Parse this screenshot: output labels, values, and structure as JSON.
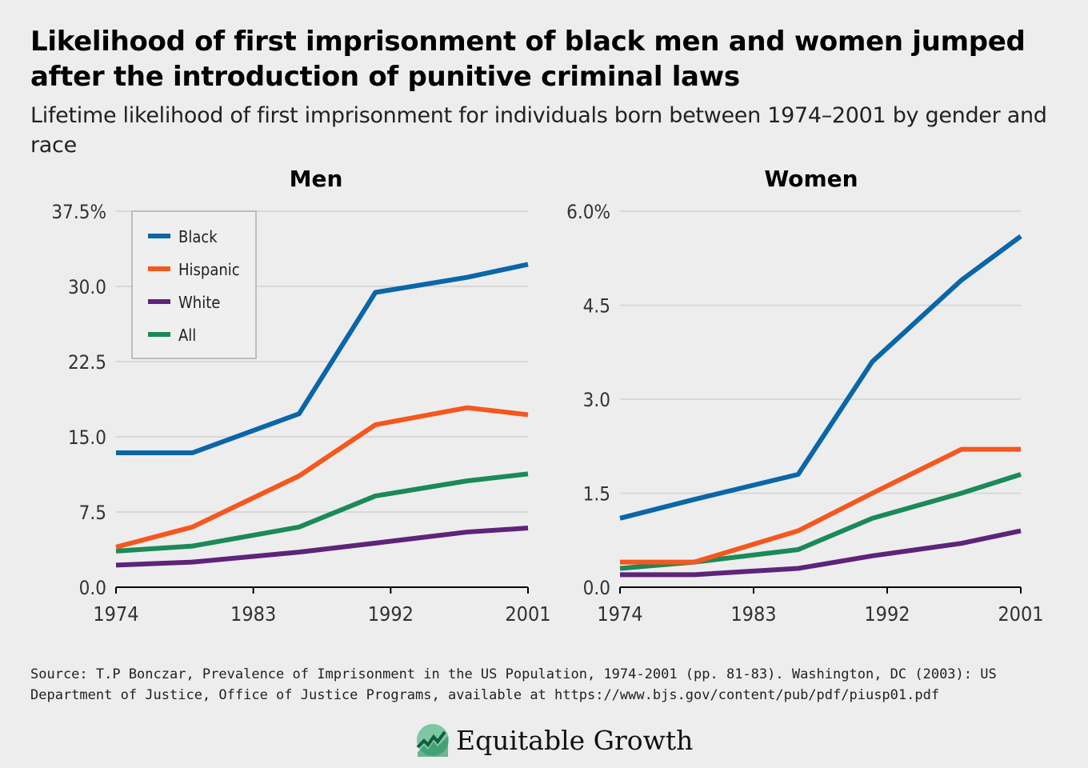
{
  "title": "Likelihood of first imprisonment of black men and women jumped after the introduction of punitive criminal laws",
  "subtitle": "Lifetime likelihood of first imprisonment for individuals born between 1974–2001 by gender and race",
  "source": "Source: T.P Bonczar, Prevalence of Imprisonment in the US Population, 1974-2001 (pp. 81-83). Washington, DC (2003): US Department of Justice, Office of Justice Programs, available at https://www.bjs.gov/content/pub/pdf/piusp01.pdf",
  "logo": {
    "text": "Equitable Growth",
    "icon": "equitable-growth-logo-icon"
  },
  "colors": {
    "Black": "#0a66a8",
    "Hispanic": "#f4581f",
    "White": "#5e237a",
    "All": "#1b8a57"
  },
  "chart_data": [
    {
      "type": "line",
      "title": "Men",
      "x": [
        1974,
        1979,
        1986,
        1991,
        1997,
        2001
      ],
      "xticks": [
        "1974",
        "1983",
        "1992",
        "2001"
      ],
      "yticks": [
        "0.0",
        "7.5",
        "15.0",
        "22.5",
        "30.0",
        "37.5%"
      ],
      "ylim": [
        0,
        37.5
      ],
      "xlim": [
        1974,
        2001
      ],
      "grid": true,
      "legend": {
        "placement": "top-left",
        "entries": [
          "Black",
          "Hispanic",
          "White",
          "All"
        ]
      },
      "series": [
        {
          "name": "Black",
          "values": [
            13.4,
            13.4,
            17.3,
            29.4,
            30.9,
            32.2
          ]
        },
        {
          "name": "Hispanic",
          "values": [
            4.0,
            6.0,
            11.1,
            16.2,
            17.9,
            17.2
          ]
        },
        {
          "name": "White",
          "values": [
            2.2,
            2.5,
            3.5,
            4.4,
            5.5,
            5.9
          ]
        },
        {
          "name": "All",
          "values": [
            3.6,
            4.1,
            6.0,
            9.1,
            10.6,
            11.3
          ]
        }
      ]
    },
    {
      "type": "line",
      "title": "Women",
      "x": [
        1974,
        1979,
        1986,
        1991,
        1997,
        2001
      ],
      "xticks": [
        "1974",
        "1983",
        "1992",
        "2001"
      ],
      "yticks": [
        "0.0",
        "1.5",
        "3.0",
        "4.5",
        "6.0%"
      ],
      "ylim": [
        0,
        6.0
      ],
      "xlim": [
        1974,
        2001
      ],
      "grid": true,
      "series": [
        {
          "name": "Black",
          "values": [
            1.1,
            1.4,
            1.8,
            3.6,
            4.9,
            5.6
          ]
        },
        {
          "name": "Hispanic",
          "values": [
            0.4,
            0.4,
            0.9,
            1.5,
            2.2,
            2.2
          ]
        },
        {
          "name": "White",
          "values": [
            0.2,
            0.2,
            0.3,
            0.5,
            0.7,
            0.9
          ]
        },
        {
          "name": "All",
          "values": [
            0.3,
            0.4,
            0.6,
            1.1,
            1.5,
            1.8
          ]
        }
      ]
    }
  ]
}
